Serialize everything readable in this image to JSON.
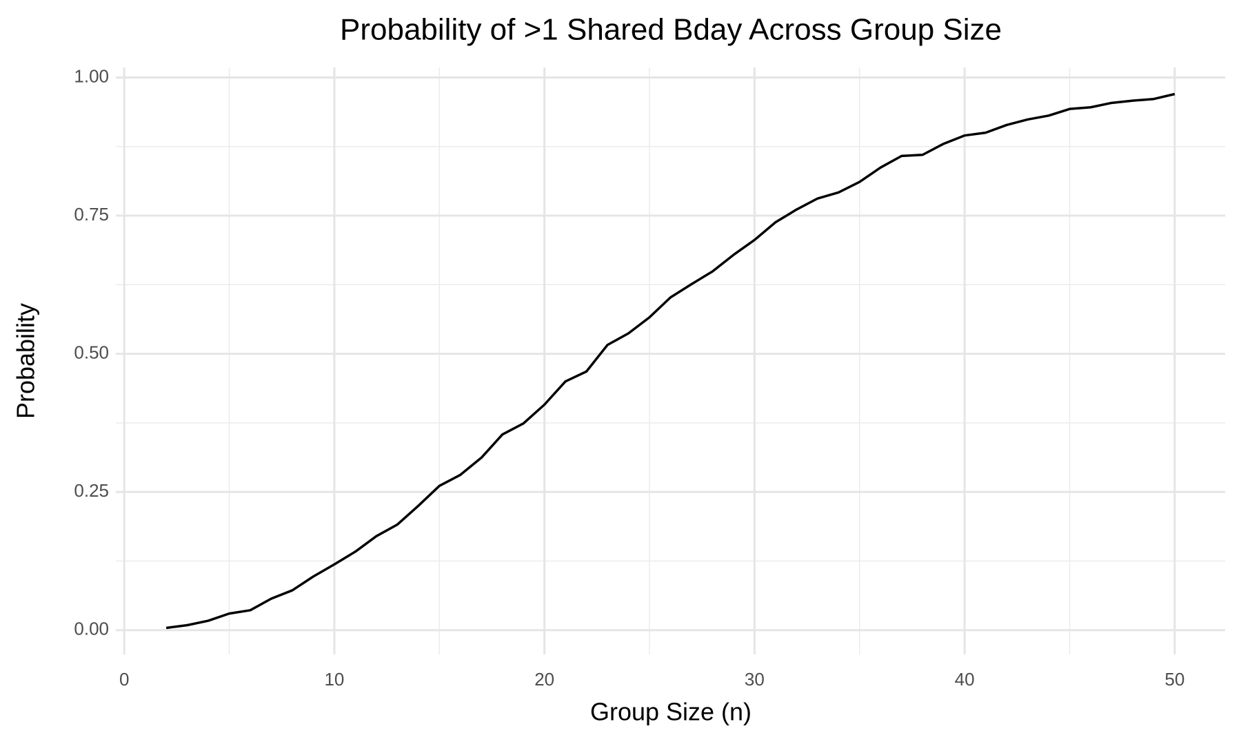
{
  "chart_data": {
    "type": "line",
    "title": "Probability of >1 Shared Bday Across Group Size",
    "x_label": "Group Size (n)",
    "y_label": "Probability",
    "x": [
      2,
      3,
      4,
      5,
      6,
      7,
      8,
      9,
      10,
      11,
      12,
      13,
      14,
      15,
      16,
      17,
      18,
      19,
      20,
      21,
      22,
      23,
      24,
      25,
      26,
      27,
      28,
      29,
      30,
      31,
      32,
      33,
      34,
      35,
      36,
      37,
      38,
      39,
      40,
      41,
      42,
      43,
      44,
      45,
      46,
      47,
      48,
      49,
      50
    ],
    "series": [
      {
        "color": "#000000",
        "values": [
          0.004,
          0.009,
          0.017,
          0.03,
          0.036,
          0.057,
          0.072,
          0.097,
          0.119,
          0.142,
          0.17,
          0.191,
          0.225,
          0.261,
          0.281,
          0.312,
          0.354,
          0.374,
          0.408,
          0.45,
          0.468,
          0.516,
          0.537,
          0.566,
          0.602,
          0.626,
          0.649,
          0.679,
          0.706,
          0.738,
          0.761,
          0.781,
          0.792,
          0.811,
          0.837,
          0.858,
          0.86,
          0.88,
          0.895,
          0.9,
          0.914,
          0.924,
          0.931,
          0.943,
          0.946,
          0.954,
          0.958,
          0.961,
          0.97
        ]
      }
    ],
    "xlim": [
      -0.4,
      52.4
    ],
    "ylim": [
      -0.044,
      1.018
    ],
    "xticks": [
      0,
      10,
      20,
      30,
      40,
      50
    ],
    "yticks": [
      {
        "value": 0,
        "label": "0.00"
      },
      {
        "value": 0.25,
        "label": "0.25"
      },
      {
        "value": 0.5,
        "label": "0.50"
      },
      {
        "value": 0.75,
        "label": "0.75"
      },
      {
        "value": 1,
        "label": "1.00"
      }
    ],
    "x_minor_ticks": [
      5,
      15,
      25,
      35,
      45
    ],
    "y_minor_ticks": [
      0.125,
      0.375,
      0.625,
      0.875
    ],
    "grid": true
  }
}
